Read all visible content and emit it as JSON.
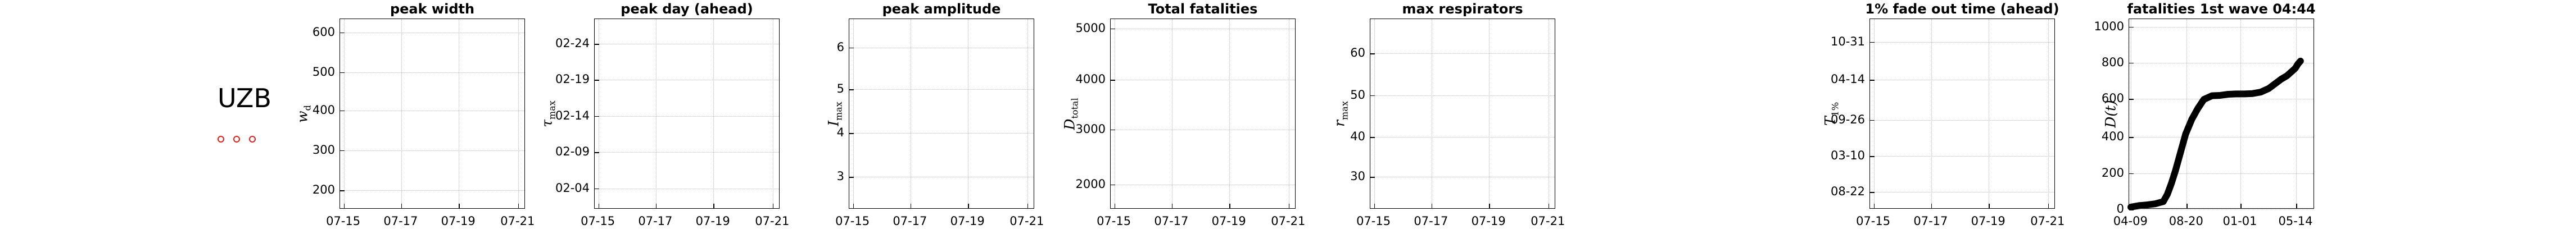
{
  "country": {
    "label": "UZB",
    "marker_color": "#e0201b",
    "marker_count": 3
  },
  "chart_data": [
    {
      "type": "line",
      "title": "peak width",
      "ylabel": "w",
      "ylabel_sub": "d",
      "xticks": [
        "07-15",
        "07-17",
        "07-19",
        "07-21"
      ],
      "yticks": [
        "200",
        "300",
        "400",
        "500",
        "600"
      ],
      "ylim": [
        130,
        650
      ],
      "series": []
    },
    {
      "type": "line",
      "title": "peak day (ahead)",
      "ylabel": "τ",
      "ylabel_sub": "max",
      "xticks": [
        "07-15",
        "07-17",
        "07-19",
        "07-21"
      ],
      "yticks": [
        "02-04",
        "02-09",
        "02-14",
        "02-19",
        "02-24"
      ],
      "series": []
    },
    {
      "type": "line",
      "title": "peak amplitude",
      "ylabel": "I",
      "ylabel_sub": "max",
      "xticks": [
        "07-15",
        "07-17",
        "07-19",
        "07-21"
      ],
      "yticks": [
        "3",
        "4",
        "5",
        "6"
      ],
      "ylim": [
        2.4,
        6.8
      ],
      "series": []
    },
    {
      "type": "line",
      "title": "Total fatalities",
      "ylabel": "D",
      "ylabel_sub": "total",
      "xticks": [
        "07-15",
        "07-17",
        "07-19",
        "07-21"
      ],
      "yticks": [
        "2000",
        "3000",
        "4000",
        "5000"
      ],
      "ylim": [
        1800,
        5200
      ],
      "series": []
    },
    {
      "type": "line",
      "title": "max respirators",
      "ylabel": "r",
      "ylabel_sub": "max",
      "xticks": [
        "07-15",
        "07-17",
        "07-19",
        "07-21"
      ],
      "yticks": [
        "30",
        "40",
        "50",
        "60"
      ],
      "ylim": [
        22,
        68
      ],
      "series": []
    },
    {
      "type": "line",
      "title": "1% fade out time (ahead)",
      "ylabel": "T",
      "ylabel_sub": "1%",
      "xticks": [
        "07-15",
        "07-17",
        "07-19",
        "07-21"
      ],
      "yticks": [
        "08-22",
        "03-10",
        "09-26",
        "04-14",
        "10-31"
      ],
      "series": []
    },
    {
      "type": "line",
      "title": "fatalities 1st wave 04:44",
      "ylabel": "D(t)",
      "xticks": [
        "04-09",
        "08-20",
        "01-01",
        "05-14"
      ],
      "yticks": [
        "0",
        "200",
        "400",
        "600",
        "800",
        "1000"
      ],
      "ylim": [
        0,
        1030
      ],
      "series_color": "#000000",
      "x_index_range": [
        0,
        425
      ],
      "series": [
        {
          "x": [
            0,
            20,
            40,
            60,
            80,
            90,
            100,
            110,
            120,
            135,
            150,
            165,
            180,
            200,
            220,
            240,
            260,
            280,
            300,
            320,
            340,
            355,
            370,
            385,
            395,
            405,
            412,
            418
          ],
          "y": [
            0,
            8,
            12,
            18,
            30,
            70,
            130,
            200,
            280,
            400,
            480,
            540,
            590,
            610,
            612,
            618,
            620,
            620,
            622,
            630,
            650,
            675,
            700,
            720,
            740,
            760,
            785,
            800
          ]
        }
      ]
    }
  ]
}
